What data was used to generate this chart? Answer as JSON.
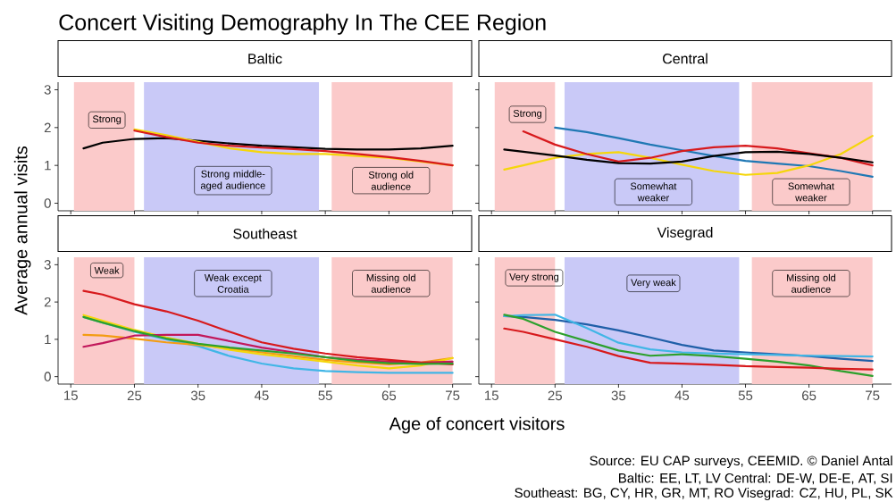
{
  "chart_data": [
    {
      "type": "line",
      "title": "Concert Visiting Demography In The CEE Region",
      "subtitle": "Baltic",
      "ylabel": "Average annual visits",
      "tick_labels": "y",
      "x": [
        17,
        20,
        25,
        30,
        35,
        40,
        45,
        50,
        55,
        60,
        65,
        70,
        75
      ],
      "xlim": [
        13,
        78
      ],
      "ylim": [
        -0.2,
        3.2
      ],
      "xticks": [
        15,
        25,
        35,
        45,
        55,
        65,
        75
      ],
      "yticks": [
        0,
        1,
        2,
        3
      ],
      "series": [
        {
          "color": "#000000",
          "values": [
            1.45,
            1.6,
            1.7,
            1.72,
            1.65,
            1.58,
            1.52,
            1.48,
            1.44,
            1.42,
            1.42,
            1.45,
            1.52
          ]
        },
        {
          "color": "#f5d60a",
          "values": [
            null,
            null,
            1.95,
            1.8,
            1.62,
            1.45,
            1.35,
            1.3,
            1.3,
            1.25,
            1.2,
            1.1,
            1.0
          ]
        },
        {
          "color": "#d7191c",
          "values": [
            null,
            null,
            1.92,
            1.75,
            1.6,
            1.52,
            1.47,
            1.43,
            1.38,
            1.3,
            1.22,
            1.12,
            1.0
          ]
        }
      ],
      "bands": [
        {
          "axis": "x",
          "from": 15.5,
          "to": 25,
          "color": "#fbcaca"
        },
        {
          "axis": "x",
          "from": 26.5,
          "to": 54,
          "color": "#c9c9f7"
        },
        {
          "axis": "x",
          "from": 56,
          "to": 75,
          "color": "#fbcaca"
        }
      ],
      "annotations": [
        "Strong",
        "Strong middle-aged audience",
        "Strong old audience"
      ]
    },
    {
      "type": "line",
      "subtitle": "Central",
      "tick_labels": false,
      "x": [
        17,
        20,
        25,
        30,
        35,
        40,
        45,
        50,
        55,
        60,
        65,
        70,
        75
      ],
      "xlim": [
        13,
        78
      ],
      "ylim": [
        -0.2,
        3.2
      ],
      "xticks": [
        15,
        25,
        35,
        45,
        55,
        65,
        75
      ],
      "yticks": [
        0,
        1,
        2,
        3
      ],
      "series": [
        {
          "color": "#1f78b4",
          "values": [
            null,
            null,
            2.0,
            1.88,
            1.72,
            1.55,
            1.4,
            1.25,
            1.12,
            1.05,
            0.98,
            0.85,
            0.7
          ]
        },
        {
          "color": "#f5d60a",
          "values": [
            0.89,
            1.0,
            1.2,
            1.3,
            1.35,
            1.2,
            1.02,
            0.85,
            0.75,
            0.8,
            1.0,
            1.3,
            1.78
          ]
        },
        {
          "color": "#d7191c",
          "values": [
            null,
            1.9,
            1.55,
            1.3,
            1.1,
            1.2,
            1.38,
            1.48,
            1.52,
            1.45,
            1.32,
            1.2,
            1.0
          ]
        },
        {
          "color": "#000000",
          "values": [
            1.42,
            1.36,
            1.26,
            1.15,
            1.06,
            1.05,
            1.1,
            1.25,
            1.35,
            1.36,
            1.3,
            1.2,
            1.08
          ]
        }
      ],
      "bands": [
        {
          "axis": "x",
          "from": 15.5,
          "to": 25,
          "color": "#fbcaca"
        },
        {
          "axis": "x",
          "from": 26.5,
          "to": 54,
          "color": "#c9c9f7"
        },
        {
          "axis": "x",
          "from": 56,
          "to": 75,
          "color": "#fbcaca"
        }
      ],
      "annotations": [
        "Strong",
        "Somewhat weaker",
        "Somewhat weaker"
      ]
    },
    {
      "type": "line",
      "subtitle": "Southeast",
      "xlabel": "Age of concert visitors",
      "x": [
        17,
        20,
        25,
        30,
        35,
        40,
        45,
        50,
        55,
        60,
        65,
        70,
        75
      ],
      "xlim": [
        13,
        78
      ],
      "ylim": [
        -0.2,
        3.2
      ],
      "xticks": [
        15,
        25,
        35,
        45,
        55,
        65,
        75
      ],
      "yticks": [
        0,
        1,
        2,
        3
      ],
      "series": [
        {
          "color": "#41b6e6",
          "values": [
            1.6,
            1.45,
            1.2,
            1.0,
            0.82,
            0.55,
            0.35,
            0.22,
            0.15,
            0.12,
            0.1,
            0.1,
            0.1
          ]
        },
        {
          "color": "#f39c12",
          "values": [
            1.12,
            1.1,
            1.02,
            0.92,
            0.85,
            0.75,
            0.65,
            0.55,
            0.45,
            0.38,
            0.33,
            0.38,
            0.5
          ]
        },
        {
          "color": "#f5d60a",
          "values": [
            1.65,
            1.5,
            1.25,
            1.05,
            0.88,
            0.72,
            0.6,
            0.5,
            0.4,
            0.3,
            0.22,
            0.3,
            0.5
          ]
        },
        {
          "color": "#c2185b",
          "values": [
            0.8,
            0.9,
            1.1,
            1.12,
            1.12,
            0.95,
            0.78,
            0.65,
            0.52,
            0.45,
            0.4,
            0.38,
            0.4
          ]
        },
        {
          "color": "#d7191c",
          "values": [
            2.3,
            2.2,
            1.94,
            1.75,
            1.5,
            1.2,
            0.92,
            0.75,
            0.62,
            0.52,
            0.45,
            0.38,
            0.33
          ]
        },
        {
          "color": "#2ca02c",
          "values": [
            1.6,
            1.45,
            1.22,
            1.02,
            0.88,
            0.78,
            0.7,
            0.62,
            0.52,
            0.42,
            0.36,
            0.34,
            0.35
          ]
        }
      ],
      "bands": [
        {
          "axis": "x",
          "from": 15.5,
          "to": 25,
          "color": "#fbcaca"
        },
        {
          "axis": "x",
          "from": 26.5,
          "to": 54,
          "color": "#c9c9f7"
        },
        {
          "axis": "x",
          "from": 56,
          "to": 75,
          "color": "#fbcaca"
        }
      ],
      "annotations": [
        "Weak",
        "Weak except Croatia",
        "Missing old audience"
      ]
    },
    {
      "type": "line",
      "subtitle": "Visegrad",
      "tick_labels": "x",
      "x": [
        17,
        20,
        25,
        30,
        35,
        40,
        45,
        50,
        55,
        60,
        65,
        70,
        75
      ],
      "xlim": [
        13,
        78
      ],
      "ylim": [
        -0.2,
        3.2
      ],
      "xticks": [
        15,
        25,
        35,
        45,
        55,
        65,
        75
      ],
      "yticks": [
        0,
        1,
        2,
        3
      ],
      "series": [
        {
          "color": "#1f5fa8",
          "values": [
            1.62,
            1.6,
            1.52,
            1.4,
            1.24,
            1.05,
            0.85,
            0.7,
            0.65,
            0.6,
            0.55,
            0.48,
            0.42
          ]
        },
        {
          "color": "#41b6e6",
          "values": [
            1.62,
            1.65,
            1.66,
            1.3,
            0.91,
            0.73,
            0.65,
            0.62,
            0.6,
            0.58,
            0.56,
            0.55,
            0.54
          ]
        },
        {
          "color": "#2ca02c",
          "values": [
            1.66,
            1.55,
            1.2,
            0.95,
            0.7,
            0.56,
            0.6,
            0.55,
            0.48,
            0.4,
            0.3,
            0.15,
            0.02
          ]
        },
        {
          "color": "#d7191c",
          "values": [
            1.29,
            1.2,
            1.0,
            0.8,
            0.55,
            0.37,
            0.35,
            0.32,
            0.28,
            0.26,
            0.24,
            0.21,
            0.19
          ]
        }
      ],
      "bands": [
        {
          "axis": "x",
          "from": 15.5,
          "to": 25,
          "color": "#fbcaca"
        },
        {
          "axis": "x",
          "from": 26.5,
          "to": 54,
          "color": "#c9c9f7"
        },
        {
          "axis": "x",
          "from": 56,
          "to": 75,
          "color": "#fbcaca"
        }
      ],
      "annotations": [
        "Very strong",
        "Very weak",
        "Missing old audience",
        "Source: EU CAP surveys, CEEMID. © Daniel Antal",
        "Baltic: EE, LT, LV Central: DE-W, DE-E, AT, SI",
        "Southeast: BG, CY, HR, GR, MT, RO Visegrad: CZ, HU, PL, SK"
      ]
    }
  ]
}
